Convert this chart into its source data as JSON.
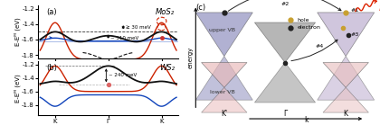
{
  "fig_width": 4.2,
  "fig_height": 1.39,
  "dpi": 100,
  "bg_color": "#f5f0eb",
  "panel_a": {
    "title": "MoS₂",
    "ylabel": "E-Eᴹ (eV)",
    "ylim": [
      -1.85,
      -1.15
    ],
    "yticks": [
      -1.8,
      -1.6,
      -1.4,
      -1.2
    ],
    "ytick_labels": [
      "-1.8",
      "-1.6",
      "-1.4",
      "-1.2"
    ],
    "xtick_labels": [
      "K",
      "Γ",
      "K"
    ],
    "K_peak_black": -1.5,
    "Gamma_black": -1.68,
    "K_peak_red": -1.38,
    "K_peak_blue": -1.58,
    "flat_blue": -1.62,
    "annotation_30meV": "≥ 30 meV",
    "annotation_310meV": "~ 310 meV",
    "color_spin_up": "#cc2200",
    "color_spin_down": "#1144bb",
    "color_degen": "#111111"
  },
  "panel_b": {
    "title": "WS₂",
    "ylabel": "E-Eᴹ (eV)",
    "ylim": [
      -1.95,
      -1.15
    ],
    "yticks": [
      -1.8,
      -1.6,
      -1.4,
      -1.2
    ],
    "ytick_labels": [
      "-1.8",
      "-1.6",
      "-1.4",
      "-1.2"
    ],
    "xtick_labels": [
      "K",
      "Γ",
      "K"
    ],
    "K_peak_black": -1.22,
    "Gamma_black": -1.5,
    "K_peak_red": -1.22,
    "K_peak_blue": -1.82,
    "annotation_240meV": "~ 240 meV",
    "color_spin_up": "#cc2200",
    "color_spin_down": "#1144bb",
    "color_degen": "#111111"
  },
  "panel_c": {
    "cone_Kp_upper_color": "#8888bb",
    "cone_Kp_lower_color": "#e8b8b8",
    "cone_G_color": "#909090",
    "cone_K_upper_color": "#b8a8cc",
    "cone_K_lower_color": "#e8c0c0",
    "hole_color": "#c8a030",
    "electron_color": "#222222",
    "arrow_color": "#333333",
    "wavy_color": "#dd2200"
  }
}
